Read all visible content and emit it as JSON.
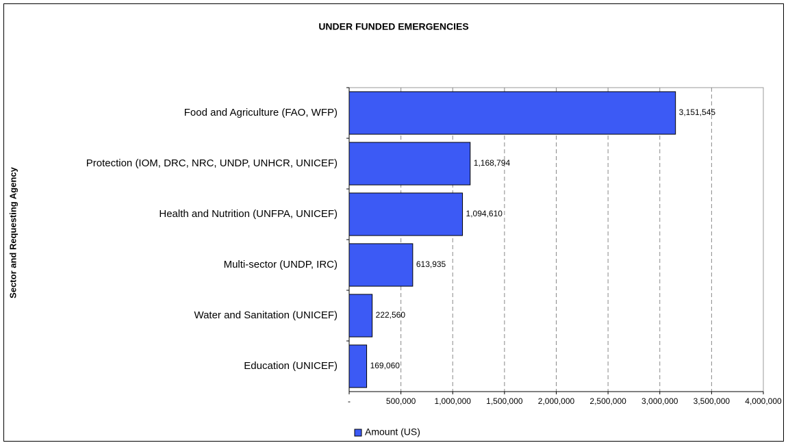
{
  "chart_data": {
    "type": "bar",
    "orientation": "horizontal",
    "title": "UNDER FUNDED EMERGENCIES",
    "ylabel": "Sector and Requesting Agency",
    "categories": [
      "Food and Agriculture (FAO, WFP)",
      "Protection (IOM, DRC, NRC, UNDP, UNHCR, UNICEF)",
      "Health and Nutrition (UNFPA, UNICEF)",
      "Multi-sector (UNDP, IRC)",
      "Water and Sanitation (UNICEF)",
      "Education (UNICEF)"
    ],
    "series": [
      {
        "name": "Amount (US)",
        "color": "#3c5af5",
        "values": [
          3151545,
          1168794,
          1094610,
          613935,
          222560,
          169060
        ],
        "value_labels": [
          "3,151,545",
          "1,168,794",
          "1,094,610",
          "613,935",
          "222,560",
          "169,060"
        ]
      }
    ],
    "xlim": [
      0,
      4000000
    ],
    "xticks": [
      {
        "value": 0,
        "label": "-"
      },
      {
        "value": 500000,
        "label": "500,000"
      },
      {
        "value": 1000000,
        "label": "1,000,000"
      },
      {
        "value": 1500000,
        "label": "1,500,000"
      },
      {
        "value": 2000000,
        "label": "2,000,000"
      },
      {
        "value": 2500000,
        "label": "2,500,000"
      },
      {
        "value": 3000000,
        "label": "3,000,000"
      },
      {
        "value": 3500000,
        "label": "3,500,000"
      },
      {
        "value": 4000000,
        "label": "4,000,000"
      }
    ],
    "grid": true,
    "legend": "bottom"
  }
}
